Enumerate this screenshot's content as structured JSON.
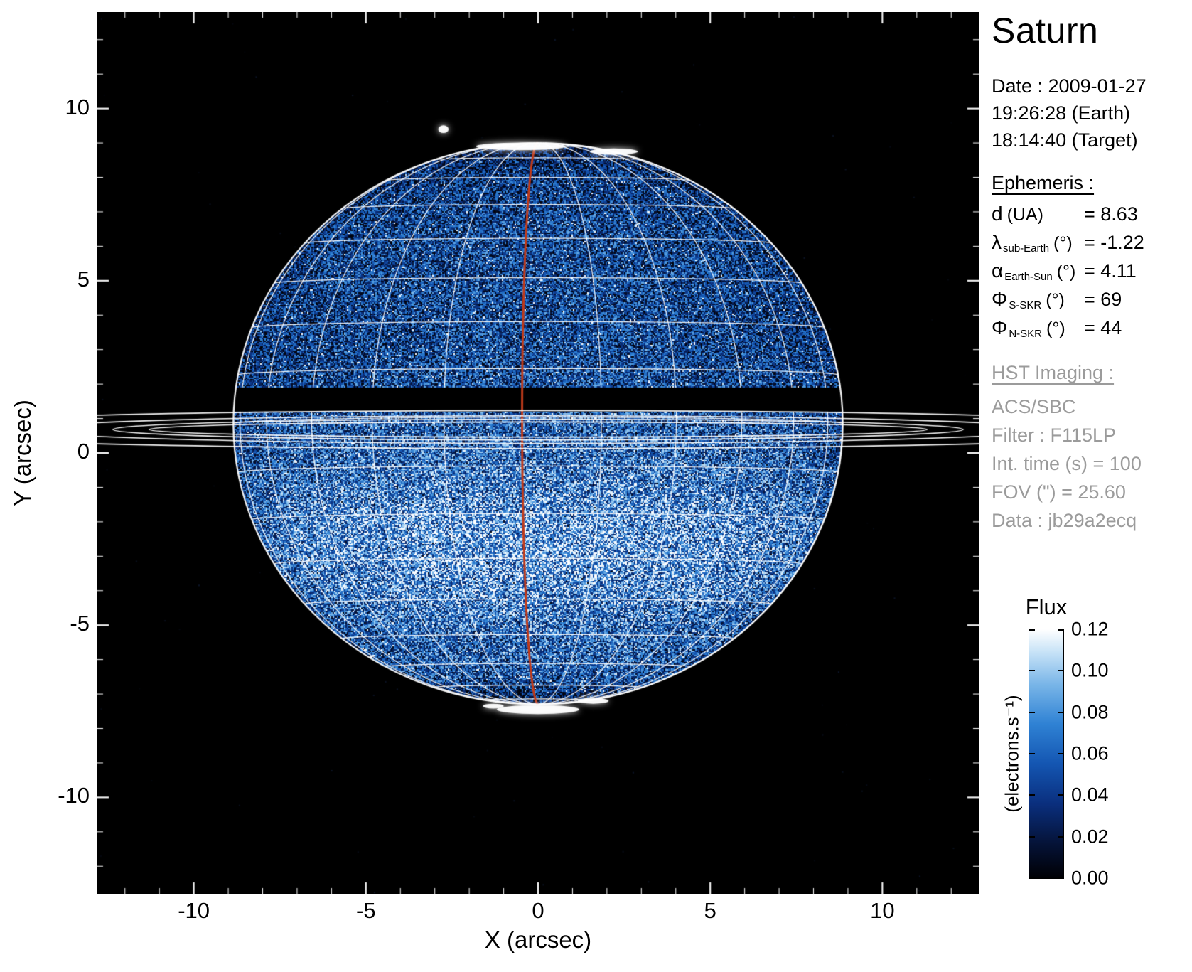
{
  "title": "Saturn",
  "observation": {
    "date": "Date : 2009-01-27",
    "time_earth": "19:26:28 (Earth)",
    "time_target": "18:14:40 (Target)"
  },
  "ephemeris": {
    "heading": "Ephemeris :",
    "rows": [
      {
        "sym": "d",
        "sub": "",
        "unit": "(UA)",
        "val": "= 8.63"
      },
      {
        "sym": "λ",
        "sub": "sub-Earth",
        "unit": "(°)",
        "val": "= -1.22"
      },
      {
        "sym": "α",
        "sub": "Earth-Sun",
        "unit": "(°)",
        "val": "= 4.11"
      },
      {
        "sym": "Φ",
        "sub": "S-SKR",
        "unit": "(°)",
        "val": "= 69"
      },
      {
        "sym": "Φ",
        "sub": "N-SKR",
        "unit": "(°)",
        "val": "= 44"
      }
    ]
  },
  "hst": {
    "heading": "HST Imaging :",
    "lines": [
      "ACS/SBC",
      "Filter : F115LP",
      "Int. time (s) = 100",
      "FOV (\") = 25.60",
      "Data : jb29a2ecq"
    ]
  },
  "chart_data": {
    "type": "heatmap",
    "title": "Saturn",
    "xlabel": "X (arcsec)",
    "ylabel": "Y (arcsec)",
    "xlim": [
      -12.8,
      12.8
    ],
    "ylim": [
      -12.8,
      12.8
    ],
    "xticks": [
      -10,
      -5,
      0,
      5,
      10
    ],
    "yticks": [
      -10,
      -5,
      0,
      5,
      10
    ],
    "grid": false,
    "background_color": "#000000",
    "colorbar": {
      "title": "Flux",
      "unit": "(electrons.s⁻¹)",
      "range": [
        0.0,
        0.12
      ],
      "tick_labels": [
        "0.12",
        "0.10",
        "0.08",
        "0.06",
        "0.04",
        "0.02",
        "0.00"
      ],
      "tick_values": [
        0.12,
        0.1,
        0.08,
        0.06,
        0.04,
        0.02,
        0.0
      ],
      "gradient": [
        {
          "pos": 0.0,
          "color": "#000004"
        },
        {
          "pos": 0.14,
          "color": "#051338"
        },
        {
          "pos": 0.3,
          "color": "#0a2f7e"
        },
        {
          "pos": 0.46,
          "color": "#1456b2"
        },
        {
          "pos": 0.62,
          "color": "#2f82d4"
        },
        {
          "pos": 0.78,
          "color": "#7ab6e8"
        },
        {
          "pos": 0.9,
          "color": "#c2e0f6"
        },
        {
          "pos": 1.0,
          "color": "#ffffff"
        }
      ]
    },
    "planet": {
      "name": "Saturn",
      "center_arcsec": [
        0,
        0.85
      ],
      "r_eq_arcsec": 8.85,
      "r_pol_arcsec": 8.15,
      "sub_earth_lat_deg": -1.22,
      "grid_lat_step_deg": 10,
      "grid_lon_step_deg": 15,
      "central_meridian_lon_deg": -3,
      "meridian_color": "#bf3a1a",
      "grid_color": "#ffffff",
      "ring_center_y_arcsec": 0.68,
      "ring_shadow_band_arcsec": [
        1.2,
        1.9
      ],
      "rings": [
        {
          "a": 12.35,
          "b": 0.3
        },
        {
          "a": 11.3,
          "b": 0.22
        },
        {
          "a": 14.8,
          "b": 0.4
        },
        {
          "a": 19.5,
          "b": 0.55
        }
      ],
      "bright_features": [
        {
          "x": -0.5,
          "y": 8.9,
          "w": 2.6,
          "h": 0.22
        },
        {
          "x": 2.2,
          "y": 8.75,
          "w": 1.4,
          "h": 0.18
        },
        {
          "x": -2.75,
          "y": 9.4,
          "w": 0.3,
          "h": 0.22
        },
        {
          "x": 0.0,
          "y": -7.45,
          "w": 2.4,
          "h": 0.26
        },
        {
          "x": 1.6,
          "y": -7.2,
          "w": 0.9,
          "h": 0.16
        },
        {
          "x": -1.3,
          "y": -7.35,
          "w": 0.6,
          "h": 0.14
        }
      ]
    }
  }
}
